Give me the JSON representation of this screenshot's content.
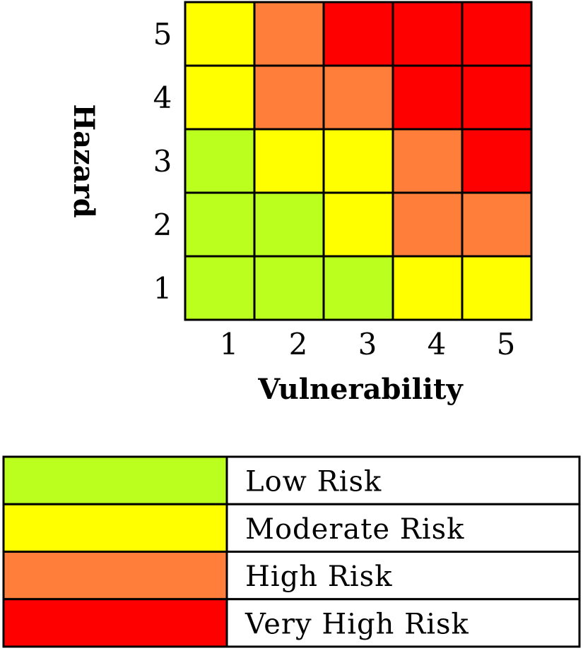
{
  "chart_data": {
    "type": "heatmap",
    "xlabel": "Vulnerability",
    "ylabel": "Hazard",
    "x_categories": [
      "1",
      "2",
      "3",
      "4",
      "5"
    ],
    "y_categories": [
      "1",
      "2",
      "3",
      "4",
      "5"
    ],
    "risk_levels": [
      {
        "level": 1,
        "label": "Low Risk",
        "color": "#bbff1f"
      },
      {
        "level": 2,
        "label": "Moderate Risk",
        "color": "#ffff00"
      },
      {
        "level": 3,
        "label": "High Risk",
        "color": "#ff7f3a"
      },
      {
        "level": 4,
        "label": "Very High Risk",
        "color": "#ff0000"
      }
    ],
    "rows": [
      {
        "hazard": "5",
        "values": [
          2,
          3,
          4,
          4,
          4
        ]
      },
      {
        "hazard": "4",
        "values": [
          2,
          3,
          3,
          4,
          4
        ]
      },
      {
        "hazard": "3",
        "values": [
          1,
          2,
          2,
          3,
          4
        ]
      },
      {
        "hazard": "2",
        "values": [
          1,
          1,
          2,
          3,
          3
        ]
      },
      {
        "hazard": "1",
        "values": [
          1,
          1,
          1,
          2,
          2
        ]
      }
    ],
    "legend_position": "bottom"
  }
}
